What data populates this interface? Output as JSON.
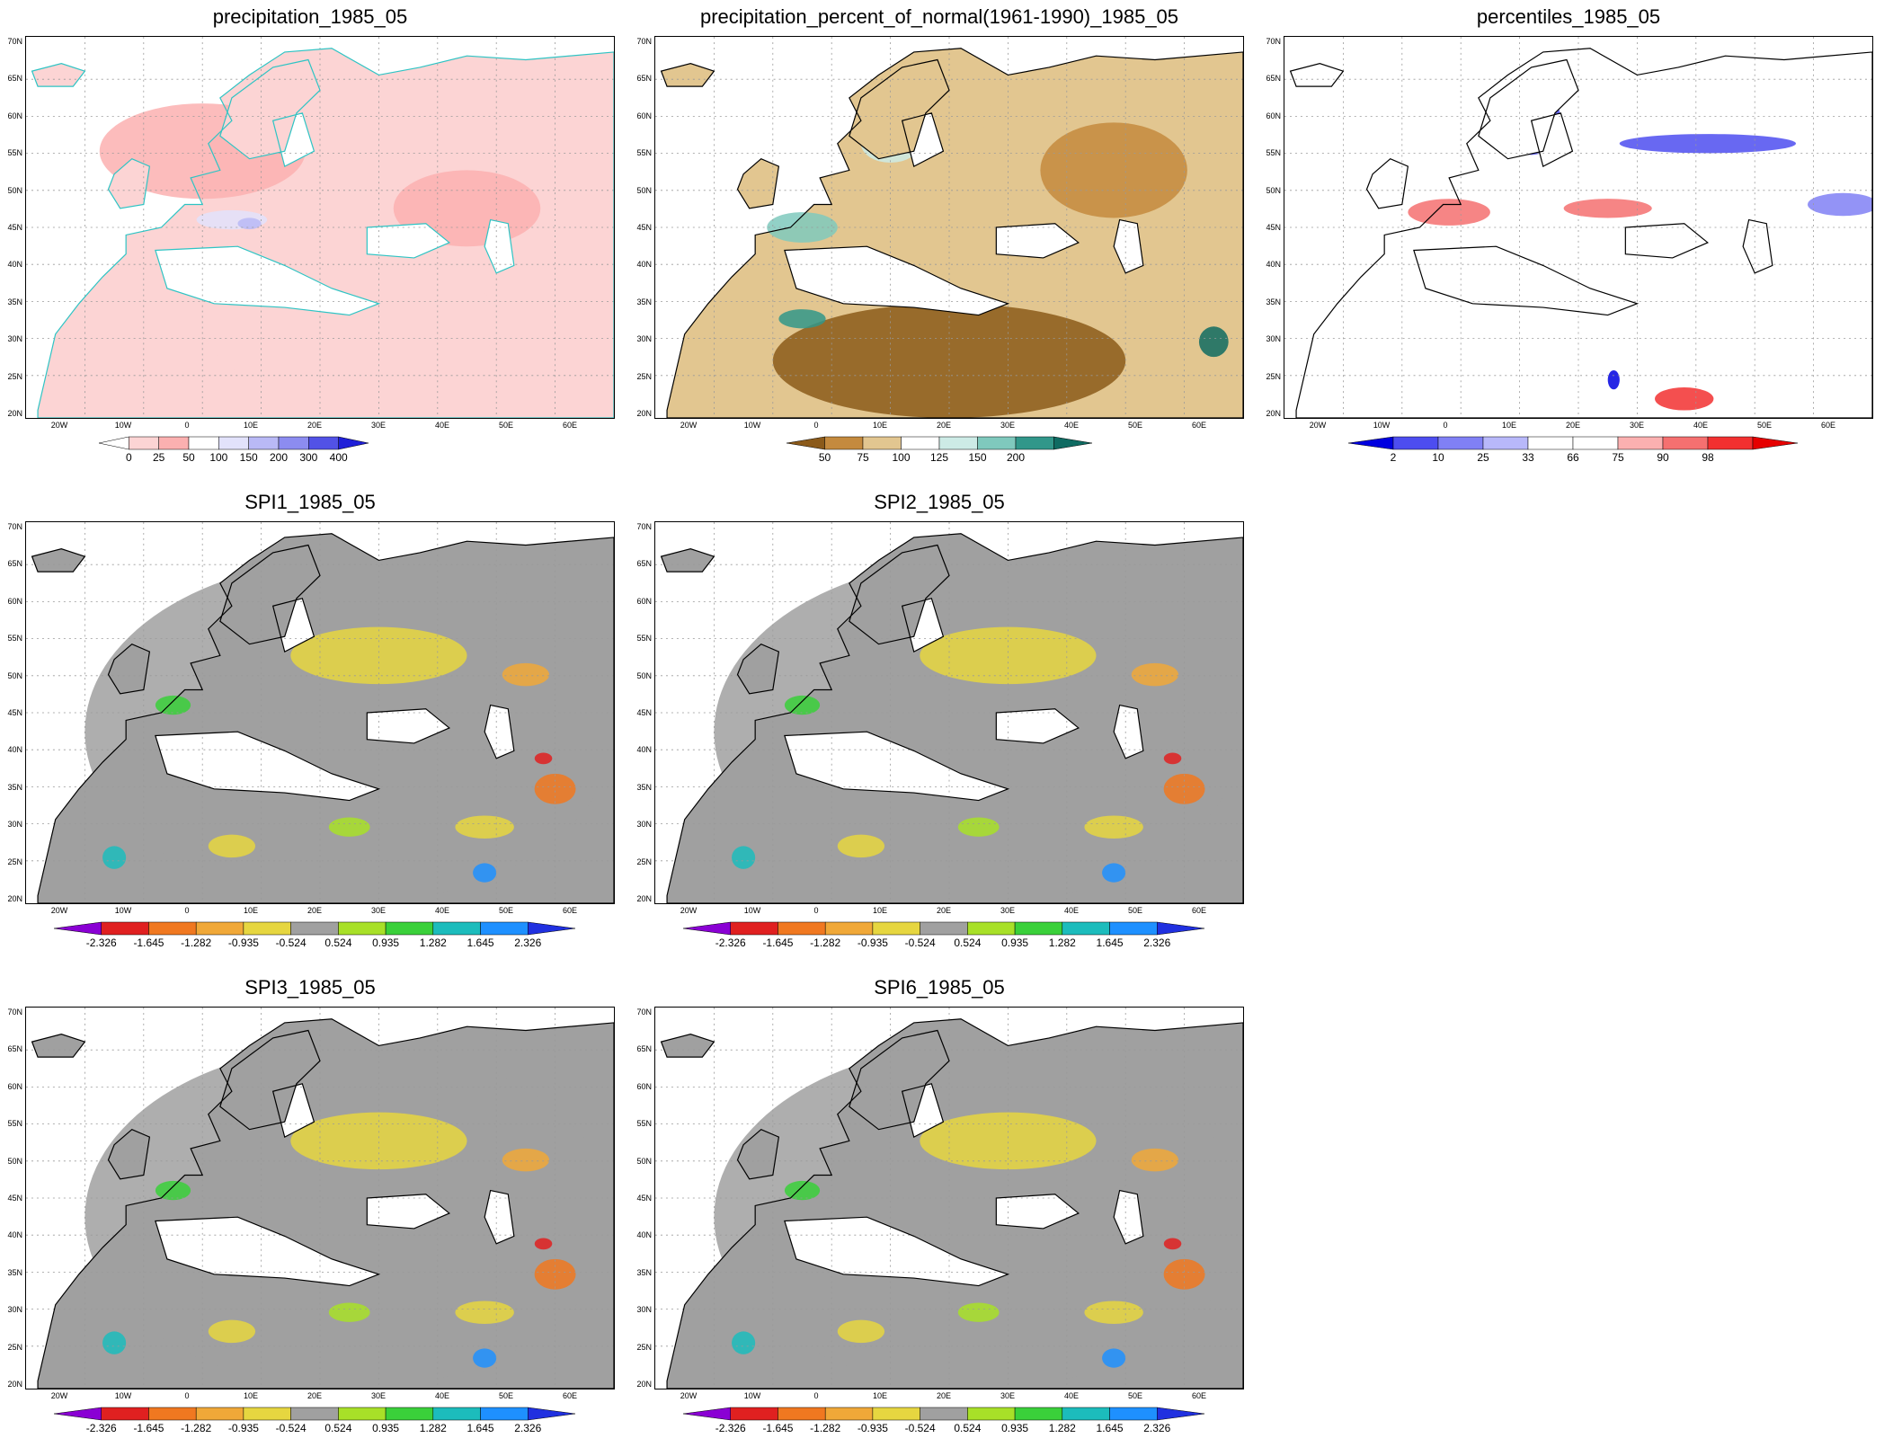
{
  "grid": {
    "lat_ticks": [
      "70N",
      "65N",
      "60N",
      "55N",
      "50N",
      "45N",
      "40N",
      "35N",
      "30N",
      "25N",
      "20N"
    ],
    "lon_ticks": [
      "20W",
      "10W",
      "0",
      "10E",
      "20E",
      "30E",
      "40E",
      "50E",
      "60E"
    ]
  },
  "panels": [
    {
      "title": "precipitation_1985_05",
      "scheme": "precip",
      "colors": [
        "#ffffff",
        "#fcd4d4",
        "#fbb0b0",
        "#ffffff",
        "#e2e2fb",
        "#b9b9f6",
        "#8c8cf0",
        "#5252e6",
        "#1f1fd8"
      ],
      "levels": [
        "0",
        "25",
        "50",
        "100",
        "150",
        "200",
        "300",
        "400"
      ],
      "coast_color": "#2ec4c4"
    },
    {
      "title": "precipitation_percent_of_normal(1961-1990)_1985_05",
      "scheme": "percent",
      "colors": [
        "#8b5a1a",
        "#c48a3e",
        "#e2c690",
        "#ffffff",
        "#cdebe6",
        "#7fc9bd",
        "#31978a",
        "#0f6b62"
      ],
      "levels": [
        "50",
        "75",
        "100",
        "125",
        "150",
        "200"
      ],
      "coast_color": "#000000"
    },
    {
      "title": "percentiles_1985_05",
      "scheme": "pctl",
      "colors": [
        "#0000e0",
        "#4d4df0",
        "#8080f5",
        "#b8b8fa",
        "#ffffff",
        "#ffffff",
        "#fbb0b0",
        "#f57070",
        "#f23030",
        "#e60000"
      ],
      "levels": [
        "2",
        "10",
        "25",
        "33",
        "66",
        "75",
        "90",
        "98"
      ],
      "coast_color": "#000000"
    },
    {
      "title": "SPI1_1985_05",
      "scheme": "spi",
      "colors": [
        "#8a00d4",
        "#e02020",
        "#f07820",
        "#f0a838",
        "#e6d640",
        "#a0a0a0",
        "#a8e028",
        "#3ad03a",
        "#1cbcbc",
        "#1e90ff",
        "#2030e0"
      ],
      "levels": [
        "-2.326",
        "-1.645",
        "-1.282",
        "-0.935",
        "-0.524",
        "0.524",
        "0.935",
        "1.282",
        "1.645",
        "2.326"
      ],
      "coast_color": "#000000"
    },
    {
      "title": "SPI2_1985_05",
      "scheme": "spi",
      "colors": [
        "#8a00d4",
        "#e02020",
        "#f07820",
        "#f0a838",
        "#e6d640",
        "#a0a0a0",
        "#a8e028",
        "#3ad03a",
        "#1cbcbc",
        "#1e90ff",
        "#2030e0"
      ],
      "levels": [
        "-2.326",
        "-1.645",
        "-1.282",
        "-0.935",
        "-0.524",
        "0.524",
        "0.935",
        "1.282",
        "1.645",
        "2.326"
      ],
      "coast_color": "#000000"
    },
    {
      "title": "SPI3_1985_05",
      "scheme": "spi",
      "colors": [
        "#8a00d4",
        "#e02020",
        "#f07820",
        "#f0a838",
        "#e6d640",
        "#a0a0a0",
        "#a8e028",
        "#3ad03a",
        "#1cbcbc",
        "#1e90ff",
        "#2030e0"
      ],
      "levels": [
        "-2.326",
        "-1.645",
        "-1.282",
        "-0.935",
        "-0.524",
        "0.524",
        "0.935",
        "1.282",
        "1.645",
        "2.326"
      ],
      "coast_color": "#000000"
    },
    {
      "title": "SPI6_1985_05",
      "scheme": "spi",
      "colors": [
        "#8a00d4",
        "#e02020",
        "#f07820",
        "#f0a838",
        "#e6d640",
        "#a0a0a0",
        "#a8e028",
        "#3ad03a",
        "#1cbcbc",
        "#1e90ff",
        "#2030e0"
      ],
      "levels": [
        "-2.326",
        "-1.645",
        "-1.282",
        "-0.935",
        "-0.524",
        "0.524",
        "0.935",
        "1.282",
        "1.645",
        "2.326"
      ],
      "coast_color": "#000000"
    }
  ]
}
